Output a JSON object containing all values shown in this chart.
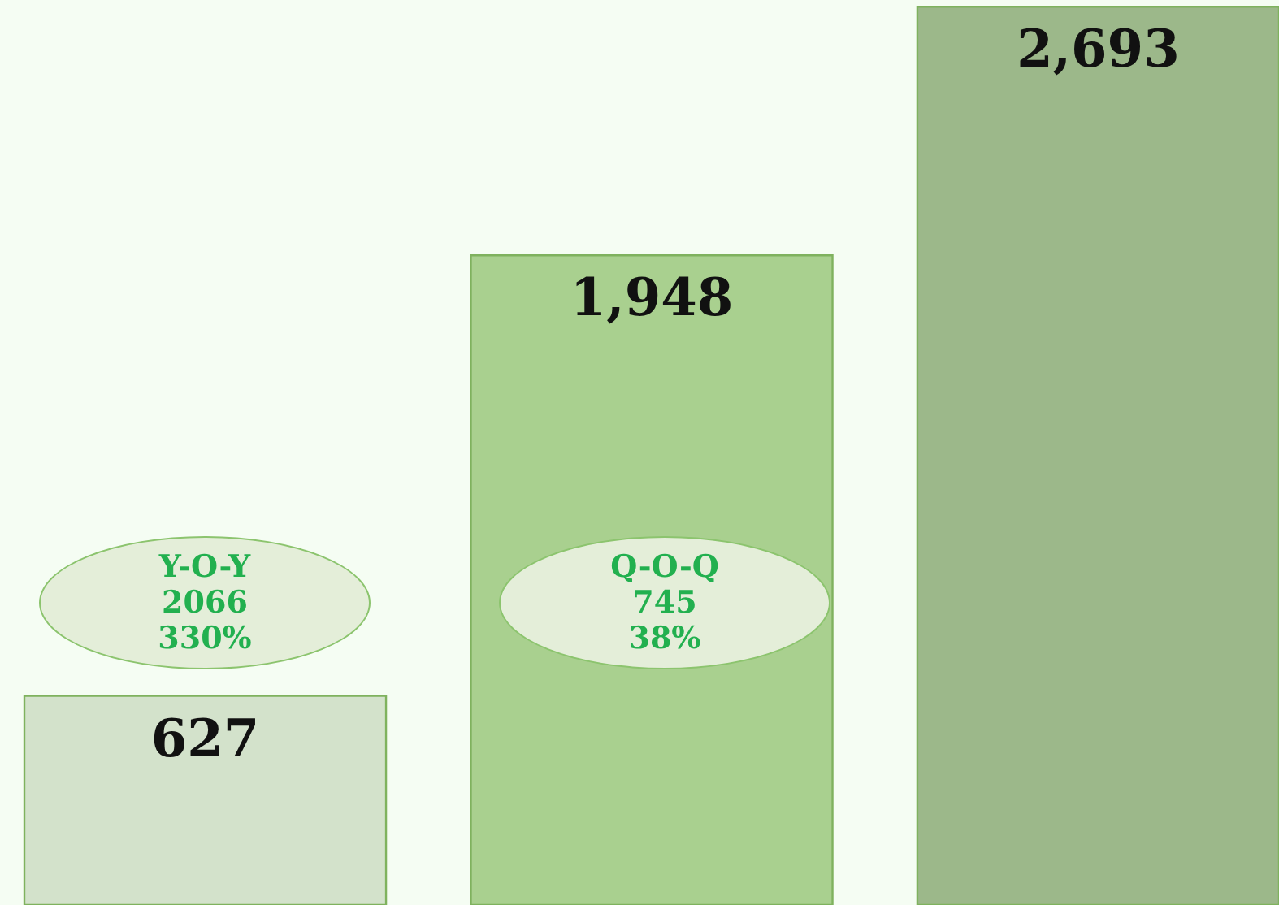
{
  "chart_data": {
    "type": "bar",
    "categories": [
      null,
      null,
      null
    ],
    "values": [
      627,
      1948,
      2693
    ],
    "colors": [
      "#d3e2cb",
      "#a9d08f",
      "#9cb88a"
    ],
    "value_labels": [
      "627",
      "1,948",
      "2,693"
    ],
    "annotations": [
      "Y-O-Y\n2066\n330%",
      "Q-O-Q\n745\n38%"
    ]
  }
}
